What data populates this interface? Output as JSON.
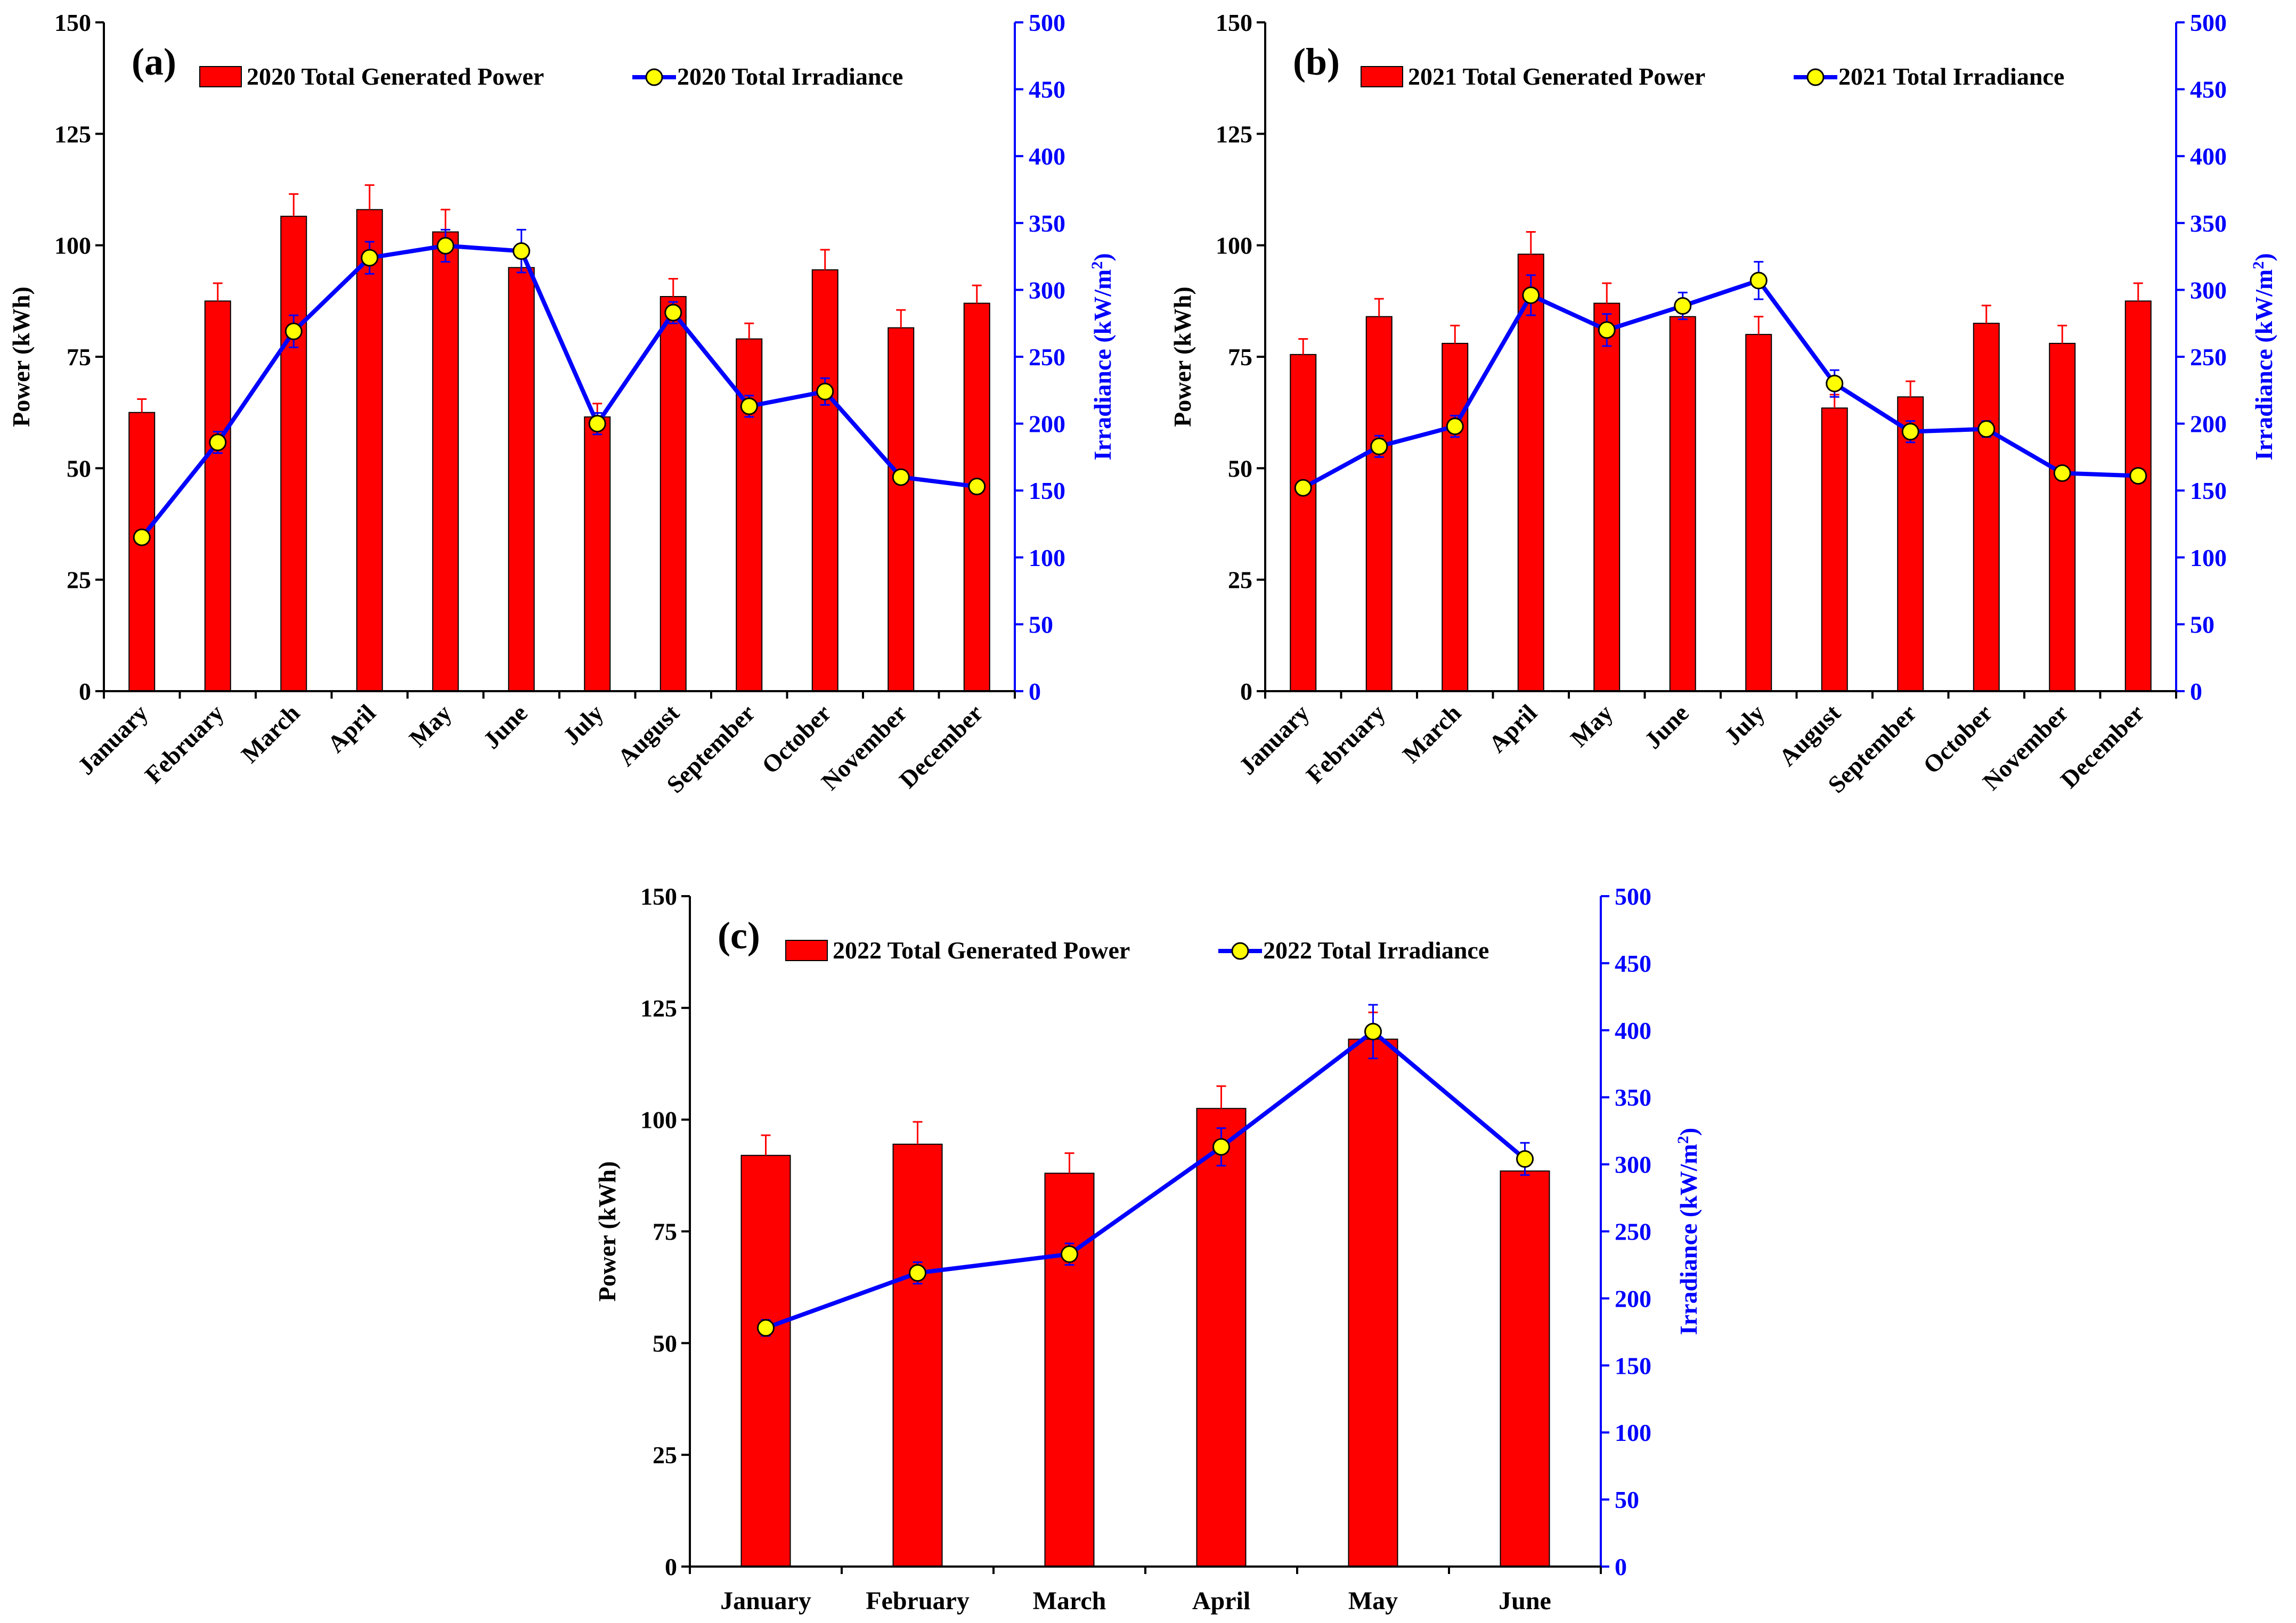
{
  "chart_data": [
    {
      "panel_label": "(a)",
      "type": "bar+line",
      "categories": [
        "January",
        "February",
        "March",
        "April",
        "May",
        "June",
        "July",
        "August",
        "September",
        "October",
        "November",
        "December"
      ],
      "ylabel": "Power (kWh)",
      "y2label_main": "Irradiance  (kW/m",
      "y2label_sup": "2",
      "y2label_end": ")",
      "ylim": [
        0,
        150
      ],
      "yticks": [
        "0",
        "25",
        "50",
        "75",
        "100",
        "125",
        "150"
      ],
      "y2lim": [
        0,
        500
      ],
      "y2ticks": [
        "0",
        "50",
        "100",
        "150",
        "200",
        "250",
        "300",
        "350",
        "400",
        "450",
        "500"
      ],
      "legend_position": "top",
      "series": [
        {
          "name": "2020 Total Generated Power",
          "kind": "bar",
          "axis": "left",
          "color": "#ff0000",
          "values": [
            62.5,
            87.5,
            106.5,
            108.0,
            103.0,
            95.0,
            61.5,
            88.5,
            79.0,
            94.5,
            81.5,
            87.0
          ],
          "error": [
            3.0,
            4.0,
            5.0,
            5.5,
            5.0,
            3.0,
            3.0,
            4.0,
            3.5,
            4.5,
            4.0,
            4.0
          ]
        },
        {
          "name": "2020 Total Irradiance",
          "kind": "line",
          "axis": "right",
          "color": "#0000ff",
          "marker_color": "#ffff00",
          "values": [
            115,
            186,
            269,
            324,
            333,
            329,
            200,
            283,
            213,
            224,
            160,
            153
          ],
          "error": [
            5,
            8,
            12,
            12,
            12,
            16,
            8,
            8,
            8,
            10,
            5,
            5
          ]
        }
      ]
    },
    {
      "panel_label": "(b)",
      "type": "bar+line",
      "categories": [
        "January",
        "February",
        "March",
        "April",
        "May",
        "June",
        "July",
        "August",
        "September",
        "October",
        "November",
        "December"
      ],
      "ylabel": "Power (kWh)",
      "y2label_main": "Irradiance  (kW/m",
      "y2label_sup": "2",
      "y2label_end": ")",
      "ylim": [
        0,
        150
      ],
      "yticks": [
        "0",
        "25",
        "50",
        "75",
        "100",
        "125",
        "150"
      ],
      "y2lim": [
        0,
        500
      ],
      "y2ticks": [
        "0",
        "50",
        "100",
        "150",
        "200",
        "250",
        "300",
        "350",
        "400",
        "450",
        "500"
      ],
      "legend_position": "top",
      "series": [
        {
          "name": "2021 Total Generated Power",
          "kind": "bar",
          "axis": "left",
          "color": "#ff0000",
          "values": [
            75.5,
            84.0,
            78.0,
            98.0,
            87.0,
            84.0,
            80.0,
            63.5,
            66.0,
            82.5,
            78.0,
            87.5
          ],
          "error": [
            3.5,
            4.0,
            4.0,
            5.0,
            4.5,
            3.0,
            4.0,
            3.0,
            3.5,
            4.0,
            4.0,
            4.0
          ]
        },
        {
          "name": "2021 Total Irradiance",
          "kind": "line",
          "axis": "right",
          "color": "#0000ff",
          "marker_color": "#ffff00",
          "values": [
            152,
            183,
            198,
            296,
            270,
            288,
            307,
            230,
            194,
            196,
            163,
            161
          ],
          "error": [
            5,
            8,
            8,
            15,
            12,
            10,
            14,
            10,
            8,
            6,
            5,
            5
          ]
        }
      ]
    },
    {
      "panel_label": "(c)",
      "type": "bar+line",
      "categories": [
        "January",
        "February",
        "March",
        "April",
        "May",
        "June"
      ],
      "ylabel": "Power (kWh)",
      "y2label_main": "Irradiance  (kW/m",
      "y2label_sup": "2",
      "y2label_end": ")",
      "ylim": [
        0,
        150
      ],
      "yticks": [
        "0",
        "25",
        "50",
        "75",
        "100",
        "125",
        "150"
      ],
      "y2lim": [
        0,
        500
      ],
      "y2ticks": [
        "0",
        "50",
        "100",
        "150",
        "200",
        "250",
        "300",
        "350",
        "400",
        "450",
        "500"
      ],
      "legend_position": "top",
      "series": [
        {
          "name": "2022 Total Generated Power",
          "kind": "bar",
          "axis": "left",
          "color": "#ff0000",
          "values": [
            92.0,
            94.5,
            88.0,
            102.5,
            118.0,
            88.5
          ],
          "error": [
            4.5,
            5.0,
            4.5,
            5.0,
            6.0,
            3.0
          ]
        },
        {
          "name": "2022 Total Irradiance",
          "kind": "line",
          "axis": "right",
          "color": "#0000ff",
          "marker_color": "#ffff00",
          "values": [
            178,
            219,
            233,
            313,
            399,
            304
          ],
          "error": [
            6,
            8,
            8,
            14,
            20,
            12
          ]
        }
      ]
    }
  ]
}
